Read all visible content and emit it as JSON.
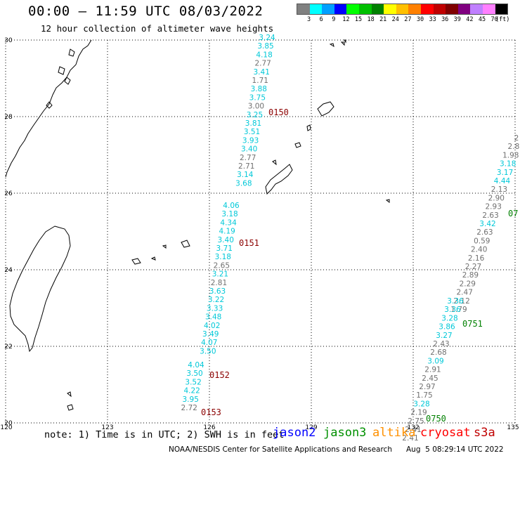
{
  "header": {
    "title": "00:00 — 11:59 UTC 08/03/2022",
    "subtitle": "12 hour collection of altimeter wave heights"
  },
  "legend": {
    "colors": [
      "#808080",
      "#00ffff",
      "#00a0ff",
      "#0000ff",
      "#00ff00",
      "#00c000",
      "#008000",
      "#ffff00",
      "#ffc000",
      "#ff8000",
      "#ff0000",
      "#c00000",
      "#800000",
      "#800080",
      "#c080ff",
      "#ff80ff",
      "#000000"
    ],
    "labels": [
      "3",
      "6",
      "9",
      "12",
      "15",
      "18",
      "21",
      "24",
      "27",
      "30",
      "33",
      "36",
      "39",
      "42",
      "45",
      "70",
      "(ft)"
    ]
  },
  "axes": {
    "lon_ticks": [
      "120",
      "123",
      "126",
      "129",
      "132",
      "135"
    ],
    "lat_ticks": [
      "30",
      "28",
      "26",
      "24",
      "22",
      "20"
    ]
  },
  "tracks": [
    {
      "pass": "0150",
      "values": [
        {
          "v": "3.24",
          "c": "#00c8d8"
        },
        {
          "v": "3.85",
          "c": "#00c8d8"
        },
        {
          "v": "4.18",
          "c": "#00c8d8"
        },
        {
          "v": "2.77",
          "c": "#707070"
        },
        {
          "v": "3.41",
          "c": "#00c8d8"
        },
        {
          "v": "1.71",
          "c": "#707070"
        },
        {
          "v": "3.88",
          "c": "#00c8d8"
        },
        {
          "v": "3.75",
          "c": "#00c8d8"
        },
        {
          "v": "3.00",
          "c": "#707070"
        },
        {
          "v": "3.25",
          "c": "#00c8d8"
        },
        {
          "v": "3.81",
          "c": "#00c8d8"
        },
        {
          "v": "3.51",
          "c": "#00c8d8"
        },
        {
          "v": "3.93",
          "c": "#00c8d8"
        },
        {
          "v": "3.40",
          "c": "#00c8d8"
        },
        {
          "v": "2.77",
          "c": "#707070"
        },
        {
          "v": "2.71",
          "c": "#707070"
        },
        {
          "v": "3.14",
          "c": "#00c8d8"
        },
        {
          "v": "3.68",
          "c": "#00c8d8"
        }
      ]
    },
    {
      "pass": "0151",
      "values": [
        {
          "v": "4.06",
          "c": "#00c8d8"
        },
        {
          "v": "3.18",
          "c": "#00c8d8"
        },
        {
          "v": "4.34",
          "c": "#00c8d8"
        },
        {
          "v": "4.19",
          "c": "#00c8d8"
        },
        {
          "v": "3.40",
          "c": "#00c8d8"
        },
        {
          "v": "3.71",
          "c": "#00c8d8"
        },
        {
          "v": "3.18",
          "c": "#00c8d8"
        },
        {
          "v": "2.65",
          "c": "#707070"
        },
        {
          "v": "3.21",
          "c": "#00c8d8"
        },
        {
          "v": "2.81",
          "c": "#707070"
        },
        {
          "v": "3.63",
          "c": "#00c8d8"
        },
        {
          "v": "3.22",
          "c": "#00c8d8"
        },
        {
          "v": "3.33",
          "c": "#00c8d8"
        },
        {
          "v": "3.48",
          "c": "#00c8d8"
        },
        {
          "v": "4.02",
          "c": "#00c8d8"
        },
        {
          "v": "3.49",
          "c": "#00c8d8"
        },
        {
          "v": "4.07",
          "c": "#00c8d8"
        },
        {
          "v": "3.50",
          "c": "#00c8d8"
        }
      ]
    },
    {
      "pass": "0152",
      "values": [
        {
          "v": "4.04",
          "c": "#00c8d8"
        },
        {
          "v": "3.50",
          "c": "#00c8d8"
        },
        {
          "v": "3.52",
          "c": "#00c8d8"
        },
        {
          "v": "4.22",
          "c": "#00c8d8"
        },
        {
          "v": "3.95",
          "c": "#00c8d8"
        },
        {
          "v": "2.72",
          "c": "#707070"
        }
      ]
    },
    {
      "pass": "0153",
      "values": []
    },
    {
      "pass": "07",
      "values": [
        {
          "v": "2",
          "c": "#707070"
        },
        {
          "v": "2.8",
          "c": "#707070"
        },
        {
          "v": "1.98",
          "c": "#707070"
        },
        {
          "v": "3.18",
          "c": "#00c8d8"
        },
        {
          "v": "3.17",
          "c": "#00c8d8"
        },
        {
          "v": "4.44",
          "c": "#00c8d8"
        },
        {
          "v": "2.13",
          "c": "#707070"
        },
        {
          "v": "2.90",
          "c": "#707070"
        },
        {
          "v": "2.93",
          "c": "#707070"
        },
        {
          "v": "2.63",
          "c": "#707070"
        },
        {
          "v": "3.42",
          "c": "#00c8d8"
        },
        {
          "v": "2.63",
          "c": "#707070"
        },
        {
          "v": "0.59",
          "c": "#707070"
        },
        {
          "v": "2.40",
          "c": "#707070"
        },
        {
          "v": "2.16",
          "c": "#707070"
        },
        {
          "v": "2.27",
          "c": "#707070"
        },
        {
          "v": "2.89",
          "c": "#707070"
        },
        {
          "v": "2.29",
          "c": "#707070"
        },
        {
          "v": "2.47",
          "c": "#707070"
        },
        {
          "v": "2.12",
          "c": "#707070"
        },
        {
          "v": "1.79",
          "c": "#707070"
        }
      ]
    },
    {
      "pass": "0751",
      "values": [
        {
          "v": "3.36",
          "c": "#00c8d8"
        },
        {
          "v": "3.36",
          "c": "#00c8d8"
        },
        {
          "v": "3.28",
          "c": "#00c8d8"
        },
        {
          "v": "3.86",
          "c": "#00c8d8"
        },
        {
          "v": "3.27",
          "c": "#00c8d8"
        },
        {
          "v": "2.43",
          "c": "#707070"
        },
        {
          "v": "2.68",
          "c": "#707070"
        },
        {
          "v": "3.09",
          "c": "#00c8d8"
        },
        {
          "v": "2.91",
          "c": "#707070"
        },
        {
          "v": "2.45",
          "c": "#707070"
        },
        {
          "v": "2.97",
          "c": "#707070"
        },
        {
          "v": "1.75",
          "c": "#707070"
        },
        {
          "v": "3.28",
          "c": "#00c8d8"
        },
        {
          "v": "2.19",
          "c": "#707070"
        },
        {
          "v": "2.75",
          "c": "#707070"
        },
        {
          "v": "2.41",
          "c": "#707070"
        },
        {
          "v": "2.41",
          "c": "#707070"
        }
      ]
    },
    {
      "pass": "0750",
      "values": []
    }
  ],
  "note": "note: 1) Time is in UTC; 2) SWH is in feet",
  "satellites": [
    {
      "name": "jason2",
      "color": "#0000ff"
    },
    {
      "name": "jason3",
      "color": "#009000"
    },
    {
      "name": "altika",
      "color": "#ff9000"
    },
    {
      "name": "cryosat",
      "color": "#ff0000"
    },
    {
      "name": "s3a",
      "color": "#c00000"
    }
  ],
  "footer": {
    "credit": "NOAA/NESDIS Center for Satellite Applications and Research",
    "timestamp": "Aug  5 08:29:14 UTC 2022"
  },
  "colors": {
    "pass_label": "#8b0000",
    "pass_label_green": "#008000"
  }
}
